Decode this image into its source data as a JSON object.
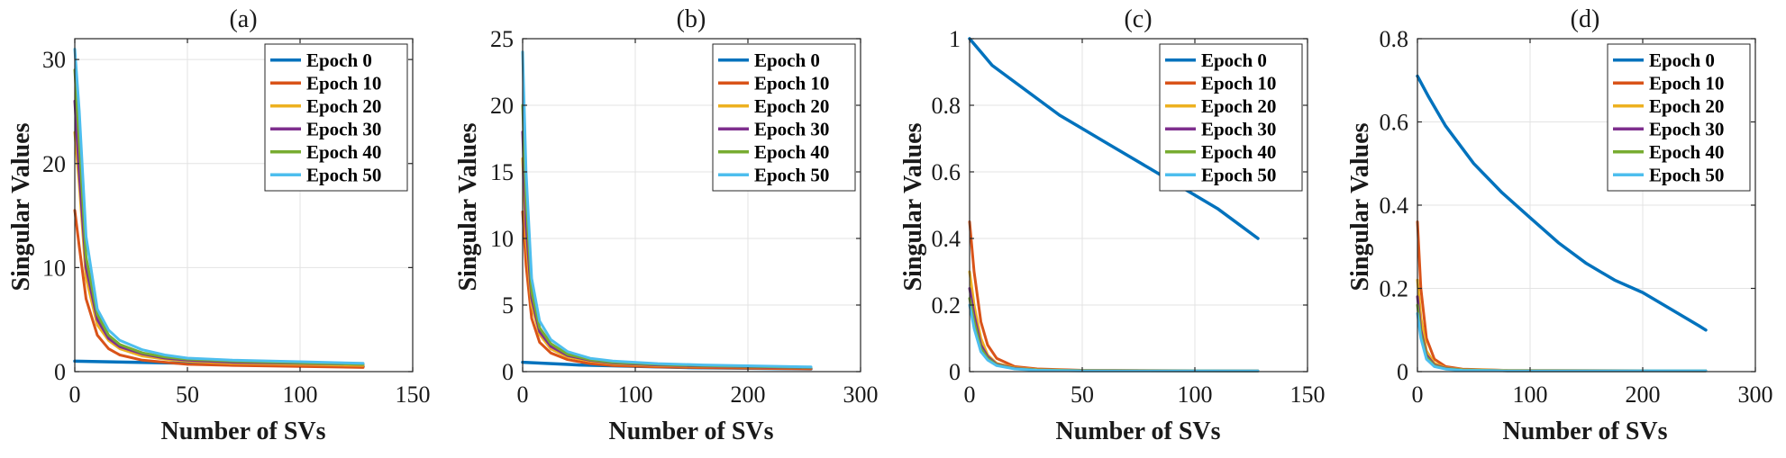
{
  "chart_data": [
    {
      "type": "line",
      "title": "(a)",
      "xlabel": "Number of SVs",
      "ylabel": "Singular Values",
      "xlim": [
        0,
        150
      ],
      "ylim": [
        0,
        32
      ],
      "xticks": [
        0,
        50,
        100,
        150
      ],
      "yticks": [
        0,
        10,
        20,
        30
      ],
      "grid": true,
      "legend_position": "top-right",
      "series": [
        {
          "name": "Epoch 0",
          "color": "#0072BD",
          "x": [
            0,
            128
          ],
          "y": [
            1.0,
            0.5
          ]
        },
        {
          "name": "Epoch 10",
          "color": "#D95319",
          "x": [
            0,
            2,
            5,
            10,
            15,
            20,
            30,
            40,
            50,
            70,
            100,
            128
          ],
          "y": [
            15.5,
            12,
            7,
            3.5,
            2.2,
            1.6,
            1.1,
            0.9,
            0.7,
            0.6,
            0.5,
            0.4
          ]
        },
        {
          "name": "Epoch 20",
          "color": "#EDB120",
          "x": [
            0,
            2,
            5,
            10,
            15,
            20,
            30,
            40,
            50,
            70,
            100,
            128
          ],
          "y": [
            23,
            18,
            9,
            4.5,
            3,
            2.2,
            1.5,
            1.2,
            1.0,
            0.8,
            0.7,
            0.6
          ]
        },
        {
          "name": "Epoch 30",
          "color": "#7E2F8E",
          "x": [
            0,
            2,
            5,
            10,
            15,
            20,
            30,
            40,
            50,
            70,
            100,
            128
          ],
          "y": [
            26,
            19,
            10,
            5,
            3.2,
            2.4,
            1.7,
            1.3,
            1.1,
            0.9,
            0.8,
            0.7
          ]
        },
        {
          "name": "Epoch 40",
          "color": "#77AC30",
          "x": [
            0,
            2,
            5,
            10,
            15,
            20,
            30,
            40,
            50,
            70,
            100,
            128
          ],
          "y": [
            29,
            22,
            11,
            5.5,
            3.5,
            2.6,
            1.8,
            1.4,
            1.2,
            1.0,
            0.85,
            0.7
          ]
        },
        {
          "name": "Epoch 50",
          "color": "#4DBEEE",
          "x": [
            0,
            2,
            5,
            10,
            15,
            20,
            30,
            40,
            50,
            70,
            100,
            128
          ],
          "y": [
            31,
            25,
            13,
            6,
            4,
            3,
            2.1,
            1.6,
            1.3,
            1.1,
            0.95,
            0.8
          ]
        }
      ]
    },
    {
      "type": "line",
      "title": "(b)",
      "xlabel": "Number of SVs",
      "ylabel": "Singular Values",
      "xlim": [
        0,
        300
      ],
      "ylim": [
        0,
        25
      ],
      "xticks": [
        0,
        100,
        200,
        300
      ],
      "yticks": [
        0,
        5,
        10,
        15,
        20,
        25
      ],
      "grid": true,
      "legend_position": "top-right",
      "series": [
        {
          "name": "Epoch 0",
          "color": "#0072BD",
          "x": [
            0,
            50,
            150,
            256
          ],
          "y": [
            0.7,
            0.5,
            0.3,
            0.2
          ]
        },
        {
          "name": "Epoch 10",
          "color": "#D95319",
          "x": [
            0,
            3,
            8,
            15,
            25,
            40,
            60,
            80,
            120,
            160,
            256
          ],
          "y": [
            12,
            8,
            4,
            2.2,
            1.4,
            0.9,
            0.6,
            0.45,
            0.35,
            0.3,
            0.2
          ]
        },
        {
          "name": "Epoch 20",
          "color": "#EDB120",
          "x": [
            0,
            3,
            8,
            15,
            25,
            40,
            60,
            80,
            120,
            160,
            256
          ],
          "y": [
            16,
            10,
            5,
            2.8,
            1.7,
            1.1,
            0.8,
            0.6,
            0.45,
            0.4,
            0.3
          ]
        },
        {
          "name": "Epoch 30",
          "color": "#7E2F8E",
          "x": [
            0,
            3,
            8,
            15,
            25,
            40,
            60,
            80,
            120,
            160,
            256
          ],
          "y": [
            18,
            11,
            5.5,
            3,
            1.9,
            1.2,
            0.85,
            0.65,
            0.5,
            0.42,
            0.3
          ]
        },
        {
          "name": "Epoch 40",
          "color": "#77AC30",
          "x": [
            0,
            3,
            8,
            15,
            25,
            40,
            60,
            80,
            120,
            160,
            256
          ],
          "y": [
            20,
            13,
            6,
            3.3,
            2.1,
            1.3,
            0.9,
            0.7,
            0.55,
            0.45,
            0.32
          ]
        },
        {
          "name": "Epoch 50",
          "color": "#4DBEEE",
          "x": [
            0,
            3,
            8,
            15,
            25,
            40,
            60,
            80,
            120,
            160,
            256
          ],
          "y": [
            24,
            15,
            7,
            3.8,
            2.4,
            1.5,
            1.0,
            0.8,
            0.6,
            0.5,
            0.35
          ]
        }
      ]
    },
    {
      "type": "line",
      "title": "(c)",
      "xlabel": "Number of SVs",
      "ylabel": "Singular Values",
      "xlim": [
        0,
        150
      ],
      "ylim": [
        0,
        1
      ],
      "xticks": [
        0,
        50,
        100,
        150
      ],
      "yticks": [
        0,
        0.2,
        0.4,
        0.6,
        0.8,
        1
      ],
      "ytick_labels": [
        "0",
        "0.2",
        "0.4",
        "0.6",
        "0.8",
        "1"
      ],
      "grid": true,
      "legend_position": "top-right",
      "series": [
        {
          "name": "Epoch 0",
          "color": "#0072BD",
          "x": [
            0,
            5,
            10,
            20,
            30,
            40,
            50,
            60,
            70,
            80,
            90,
            100,
            110,
            120,
            128
          ],
          "y": [
            1.0,
            0.96,
            0.92,
            0.87,
            0.82,
            0.77,
            0.73,
            0.69,
            0.65,
            0.61,
            0.57,
            0.53,
            0.49,
            0.44,
            0.4
          ]
        },
        {
          "name": "Epoch 10",
          "color": "#D95319",
          "x": [
            0,
            2,
            5,
            8,
            12,
            20,
            30,
            50,
            128
          ],
          "y": [
            0.45,
            0.3,
            0.15,
            0.08,
            0.04,
            0.015,
            0.008,
            0.004,
            0.002
          ]
        },
        {
          "name": "Epoch 20",
          "color": "#EDB120",
          "x": [
            0,
            2,
            5,
            8,
            12,
            20,
            30,
            50,
            128
          ],
          "y": [
            0.3,
            0.2,
            0.1,
            0.05,
            0.025,
            0.012,
            0.006,
            0.003,
            0.002
          ]
        },
        {
          "name": "Epoch 30",
          "color": "#7E2F8E",
          "x": [
            0,
            2,
            5,
            8,
            12,
            20,
            30,
            50,
            128
          ],
          "y": [
            0.25,
            0.17,
            0.08,
            0.045,
            0.022,
            0.01,
            0.005,
            0.003,
            0.002
          ]
        },
        {
          "name": "Epoch 40",
          "color": "#77AC30",
          "x": [
            0,
            2,
            5,
            8,
            12,
            20,
            30,
            50,
            128
          ],
          "y": [
            0.22,
            0.15,
            0.07,
            0.04,
            0.02,
            0.009,
            0.005,
            0.003,
            0.002
          ]
        },
        {
          "name": "Epoch 50",
          "color": "#4DBEEE",
          "x": [
            0,
            2,
            5,
            8,
            12,
            20,
            30,
            50,
            128
          ],
          "y": [
            0.2,
            0.13,
            0.06,
            0.035,
            0.018,
            0.008,
            0.004,
            0.002,
            0.002
          ]
        }
      ]
    },
    {
      "type": "line",
      "title": "(d)",
      "xlabel": "Number of SVs",
      "ylabel": "Singular Values",
      "xlim": [
        0,
        300
      ],
      "ylim": [
        0,
        0.8
      ],
      "xticks": [
        0,
        100,
        200,
        300
      ],
      "yticks": [
        0,
        0.2,
        0.4,
        0.6,
        0.8
      ],
      "ytick_labels": [
        "0",
        "0.2",
        "0.4",
        "0.6",
        "0.8"
      ],
      "grid": true,
      "legend_position": "top-right",
      "series": [
        {
          "name": "Epoch 0",
          "color": "#0072BD",
          "x": [
            0,
            10,
            25,
            50,
            75,
            100,
            125,
            150,
            175,
            200,
            225,
            250,
            256
          ],
          "y": [
            0.71,
            0.66,
            0.59,
            0.5,
            0.43,
            0.37,
            0.31,
            0.26,
            0.22,
            0.19,
            0.15,
            0.11,
            0.1
          ]
        },
        {
          "name": "Epoch 10",
          "color": "#D95319",
          "x": [
            0,
            3,
            8,
            15,
            25,
            40,
            80,
            256
          ],
          "y": [
            0.36,
            0.2,
            0.08,
            0.03,
            0.012,
            0.006,
            0.003,
            0.002
          ]
        },
        {
          "name": "Epoch 20",
          "color": "#EDB120",
          "x": [
            0,
            3,
            8,
            15,
            25,
            40,
            80,
            256
          ],
          "y": [
            0.22,
            0.13,
            0.05,
            0.02,
            0.009,
            0.005,
            0.003,
            0.002
          ]
        },
        {
          "name": "Epoch 30",
          "color": "#7E2F8E",
          "x": [
            0,
            3,
            8,
            15,
            25,
            40,
            80,
            256
          ],
          "y": [
            0.18,
            0.1,
            0.04,
            0.016,
            0.008,
            0.004,
            0.002,
            0.002
          ]
        },
        {
          "name": "Epoch 40",
          "color": "#77AC30",
          "x": [
            0,
            3,
            8,
            15,
            25,
            40,
            80,
            256
          ],
          "y": [
            0.16,
            0.09,
            0.035,
            0.014,
            0.007,
            0.004,
            0.002,
            0.002
          ]
        },
        {
          "name": "Epoch 50",
          "color": "#4DBEEE",
          "x": [
            0,
            3,
            8,
            15,
            25,
            40,
            80,
            256
          ],
          "y": [
            0.14,
            0.08,
            0.03,
            0.012,
            0.006,
            0.003,
            0.002,
            0.002
          ]
        }
      ]
    }
  ]
}
